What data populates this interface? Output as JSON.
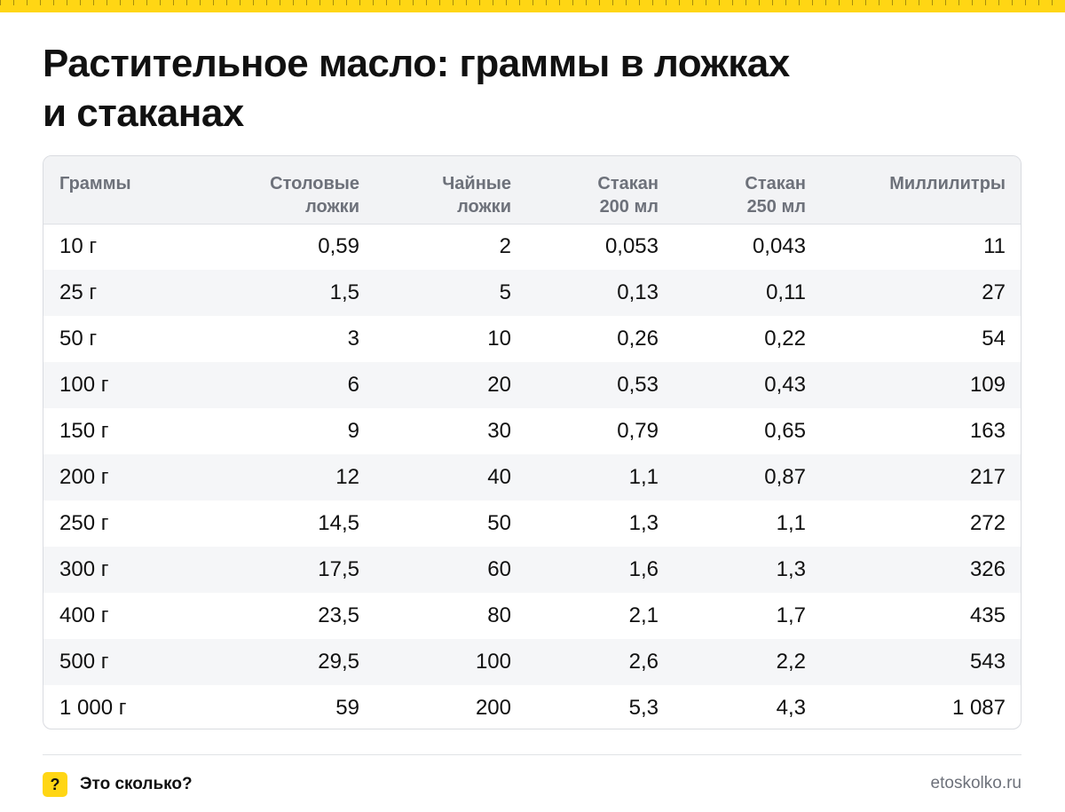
{
  "header": {
    "title_line1": "Растительное масло: граммы в ложках",
    "title_line2": "и стаканах"
  },
  "table": {
    "columns": [
      {
        "lines": [
          "Граммы"
        ]
      },
      {
        "lines": [
          "Столовые",
          "ложки"
        ]
      },
      {
        "lines": [
          "Чайные",
          "ложки"
        ]
      },
      {
        "lines": [
          "Стакан",
          "200 мл"
        ]
      },
      {
        "lines": [
          "Стакан",
          "250 мл"
        ]
      },
      {
        "lines": [
          "Миллилитры"
        ]
      }
    ],
    "rows": [
      [
        "10 г",
        "0,59",
        "2",
        "0,053",
        "0,043",
        "11"
      ],
      [
        "25 г",
        "1,5",
        "5",
        "0,13",
        "0,11",
        "27"
      ],
      [
        "50 г",
        "3",
        "10",
        "0,26",
        "0,22",
        "54"
      ],
      [
        "100 г",
        "6",
        "20",
        "0,53",
        "0,43",
        "109"
      ],
      [
        "150 г",
        "9",
        "30",
        "0,79",
        "0,65",
        "163"
      ],
      [
        "200 г",
        "12",
        "40",
        "1,1",
        "0,87",
        "217"
      ],
      [
        "250 г",
        "14,5",
        "50",
        "1,3",
        "1,1",
        "272"
      ],
      [
        "300 г",
        "17,5",
        "60",
        "1,6",
        "1,3",
        "326"
      ],
      [
        "400 г",
        "23,5",
        "80",
        "2,1",
        "1,7",
        "435"
      ],
      [
        "500 г",
        "29,5",
        "100",
        "2,6",
        "2,2",
        "543"
      ],
      [
        "1 000 г",
        "59",
        "200",
        "5,3",
        "4,3",
        "1 087"
      ]
    ]
  },
  "footer": {
    "logo_mark": "?",
    "brand_name": "Это сколько?",
    "site": "etoskolko.ru"
  },
  "colors": {
    "accent_yellow": "#FFD614",
    "header_text": "#6d717a",
    "row_stripe": "#f5f6f8"
  }
}
